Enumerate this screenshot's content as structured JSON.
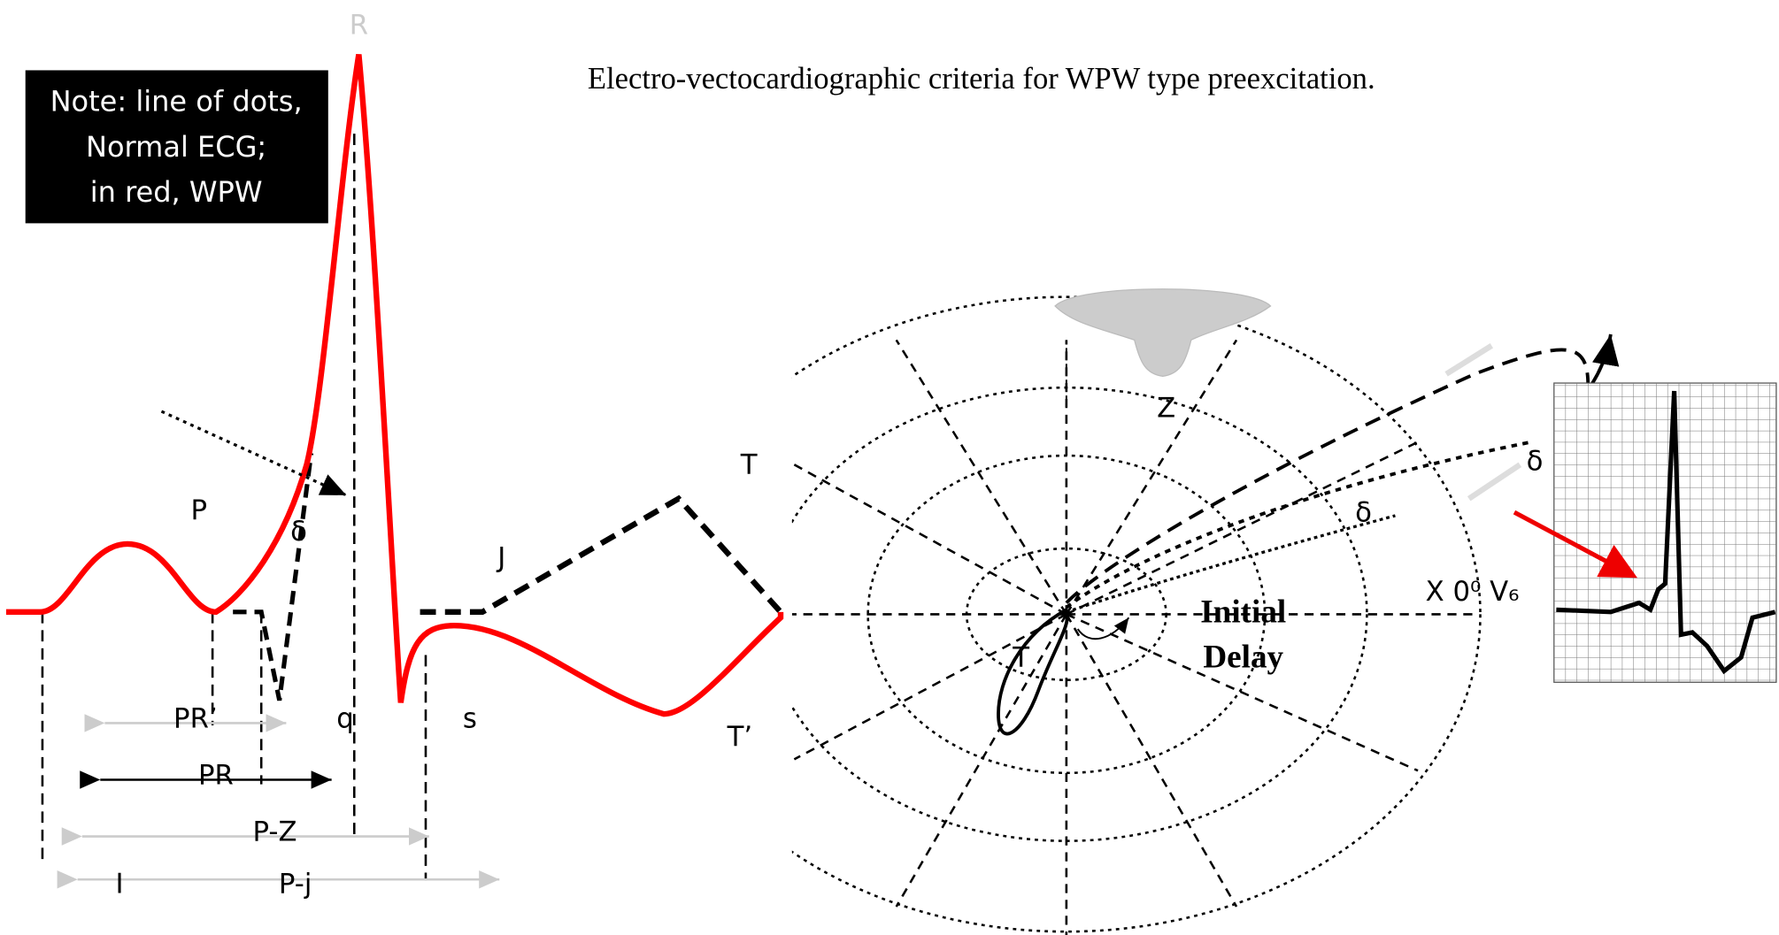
{
  "title": "Electro-vectocardiographic criteria for WPW type preexcitation.",
  "note": [
    "Note: line of dots,",
    "Normal ECG;",
    "in red, WPW"
  ],
  "ecg_labels": {
    "r": "R",
    "p": "P",
    "delta": "δ",
    "j": "J",
    "t": "T",
    "t_prime": "T’",
    "pr_prime": "PR’",
    "q": "q",
    "s": "s",
    "pr": "PR",
    "p_z": "P-Z",
    "i": "I",
    "p_j": "P-j"
  },
  "vcg_labels": {
    "z": "Z",
    "delta_1": "δ",
    "delta_2": "δ",
    "t": "T",
    "initial": "Initial",
    "delay": "Delay",
    "axis": "X 0⁰ V₆"
  }
}
